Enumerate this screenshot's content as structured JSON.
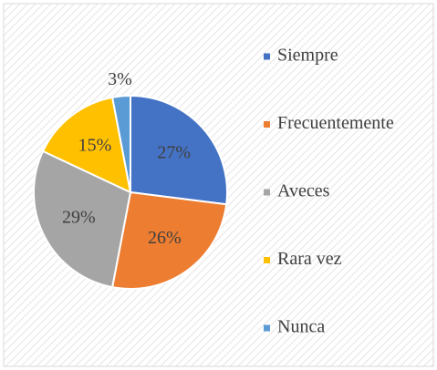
{
  "chart_data": {
    "type": "pie",
    "categories": [
      "Siempre",
      "Frecuentemente",
      "Aveces",
      "Rara vez",
      "Nunca"
    ],
    "values": [
      27,
      26,
      29,
      15,
      3
    ],
    "value_labels": [
      "27%",
      "26%",
      "29%",
      "15%",
      "3%"
    ],
    "colors": [
      "#4472c4",
      "#ed7d31",
      "#a5a5a5",
      "#ffc000",
      "#5b9bd5"
    ],
    "legend": "right"
  }
}
